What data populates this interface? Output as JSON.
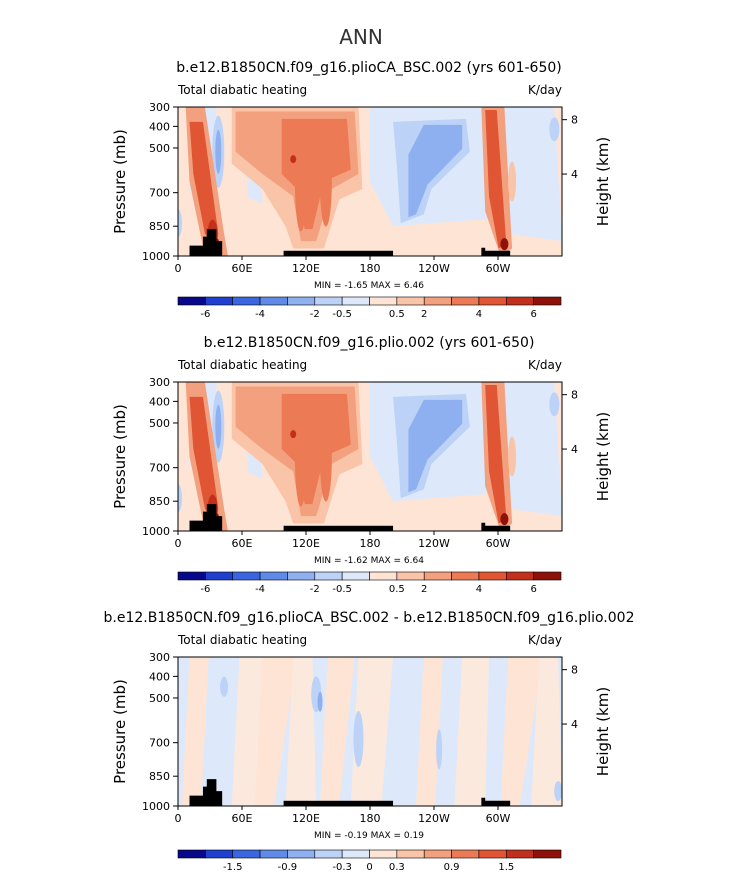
{
  "figure": {
    "title": "ANN",
    "colors": {
      "neg": [
        "#08088a",
        "#1f3fcf",
        "#3a66e0",
        "#5f8ae8",
        "#8fb0f0",
        "#bcd2f6",
        "#dde9fb"
      ],
      "pos": [
        "#fde4d4",
        "#f9c4a8",
        "#f3a07e",
        "#ec7a55",
        "#e05534",
        "#c2301c",
        "#8e1209"
      ],
      "terrain": "#000000"
    }
  },
  "chart_data": [
    {
      "type": "heatmap",
      "title": "b.e12.B1850CN.f09_g16.plioCA_BSC.002 (yrs 601-650)",
      "left_label": "Total diabatic heating",
      "right_label": "K/day",
      "ylabel": "Pressure (mb)",
      "y2label": "Height (km)",
      "yticks": [
        "300",
        "400",
        "500",
        "700",
        "850",
        "1000"
      ],
      "y2ticks": [
        "8",
        "4"
      ],
      "xticks": [
        "0",
        "60E",
        "120E",
        "180",
        "120W",
        "60W"
      ],
      "stats": "MIN =   -1.65  MAX =    6.46",
      "colorbar_labels": [
        "-6",
        "-4",
        "-2",
        "-0.5",
        "0.5",
        "2",
        "4",
        "6"
      ],
      "min": -1.65,
      "max": 6.46,
      "variant": "full"
    },
    {
      "type": "heatmap",
      "title": "b.e12.B1850CN.f09_g16.plio.002 (yrs 601-650)",
      "left_label": "Total diabatic heating",
      "right_label": "K/day",
      "ylabel": "Pressure (mb)",
      "y2label": "Height (km)",
      "yticks": [
        "300",
        "400",
        "500",
        "700",
        "850",
        "1000"
      ],
      "y2ticks": [
        "8",
        "4"
      ],
      "xticks": [
        "0",
        "60E",
        "120E",
        "180",
        "120W",
        "60W"
      ],
      "stats": "MIN =   -1.62  MAX =    6.64",
      "colorbar_labels": [
        "-6",
        "-4",
        "-2",
        "-0.5",
        "0.5",
        "2",
        "4",
        "6"
      ],
      "min": -1.62,
      "max": 6.64,
      "variant": "full"
    },
    {
      "type": "heatmap",
      "title": "b.e12.B1850CN.f09_g16.plioCA_BSC.002 - b.e12.B1850CN.f09_g16.plio.002",
      "left_label": "Total diabatic heating",
      "right_label": "K/day",
      "ylabel": "Pressure (mb)",
      "y2label": "Height (km)",
      "yticks": [
        "300",
        "400",
        "500",
        "700",
        "850",
        "1000"
      ],
      "y2ticks": [
        "8",
        "4"
      ],
      "xticks": [
        "0",
        "60E",
        "120E",
        "180",
        "120W",
        "60W"
      ],
      "stats": "MIN =   -0.19  MAX =    0.19",
      "colorbar_labels": [
        "-1.5",
        "-0.9",
        "-0.3",
        "0",
        "0.3",
        "0.9",
        "1.5"
      ],
      "min": -0.19,
      "max": 0.19,
      "variant": "diff"
    }
  ]
}
